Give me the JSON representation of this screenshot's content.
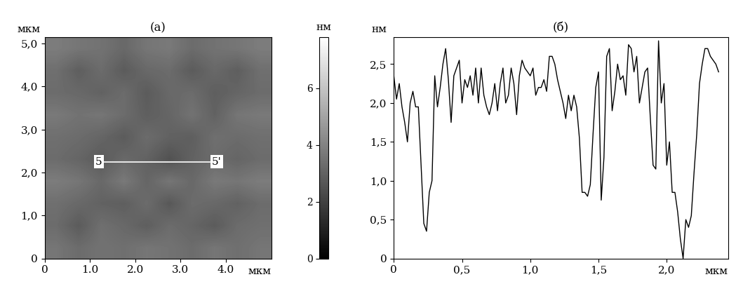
{
  "chart_data": [
    {
      "type": "heatmap",
      "title": "(а)",
      "x_label": "мкм",
      "y_label": "мкм",
      "xlim": [
        0,
        5.0
      ],
      "ylim": [
        0,
        5.15
      ],
      "xticks": [
        0,
        {
          "value": 1,
          "label": "1.0"
        },
        {
          "value": 2,
          "label": "2.0"
        },
        {
          "value": 3,
          "label": "3.0"
        },
        {
          "value": 4,
          "label": "4.0"
        }
      ],
      "yticks": [
        0,
        {
          "value": 1,
          "label": "1,0"
        },
        {
          "value": 2,
          "label": "2,0"
        },
        {
          "value": 3,
          "label": "3,0"
        },
        {
          "value": 4,
          "label": "4,0"
        },
        {
          "value": 5,
          "label": "5,0"
        }
      ],
      "cells": [
        [
          3.6,
          3.3,
          3.5,
          3.4,
          3.6,
          3.5,
          3.3,
          3.6,
          3.4,
          3.6
        ],
        [
          3.3,
          2.8,
          3.4,
          3.2,
          2.9,
          3.3,
          3.1,
          2.8,
          3.3,
          3.4
        ],
        [
          3.4,
          3.2,
          3.0,
          2.9,
          3.3,
          2.7,
          3.3,
          3.2,
          3.0,
          3.3
        ],
        [
          3.8,
          3.6,
          3.2,
          3.7,
          3.1,
          3.6,
          3.2,
          3.7,
          3.6,
          3.8
        ],
        [
          3.3,
          3.1,
          2.8,
          3.2,
          3.0,
          2.5,
          3.0,
          3.3,
          3.1,
          3.3
        ],
        [
          3.4,
          3.3,
          3.1,
          2.8,
          3.3,
          3.0,
          2.9,
          3.4,
          3.3,
          3.4
        ],
        [
          3.7,
          3.5,
          3.6,
          3.3,
          2.9,
          3.1,
          3.5,
          3.0,
          3.6,
          3.7
        ],
        [
          3.3,
          3.2,
          3.0,
          3.3,
          2.8,
          3.2,
          3.3,
          2.9,
          3.1,
          3.3
        ],
        [
          3.4,
          2.9,
          3.3,
          2.8,
          3.2,
          3.3,
          2.8,
          3.2,
          2.9,
          3.4
        ],
        [
          3.8,
          3.6,
          3.5,
          3.2,
          3.6,
          3.7,
          3.3,
          3.5,
          3.6,
          3.8
        ]
      ],
      "colorbar_label": "нм",
      "colorbar_range": [
        0,
        7.8
      ],
      "colorbar_ticks": [
        0,
        2,
        4,
        6
      ],
      "profile_line": {
        "x": [
          1.2,
          3.8
        ],
        "y": [
          2.25,
          2.25
        ],
        "labels": [
          "5",
          "5'"
        ]
      }
    },
    {
      "type": "line",
      "title": "(б)",
      "x_label": "мкм",
      "y_label": "нм",
      "xlim": [
        0,
        2.45
      ],
      "ylim": [
        0,
        2.85
      ],
      "xticks": [
        0,
        {
          "value": 0.5,
          "label": "0,5"
        },
        {
          "value": 1.0,
          "label": "1,0"
        },
        {
          "value": 1.5,
          "label": "1,5"
        },
        {
          "value": 2.0,
          "label": "2,0"
        }
      ],
      "yticks": [
        0,
        {
          "value": 0.5,
          "label": "0,5"
        },
        {
          "value": 1.0,
          "label": "1,0"
        },
        {
          "value": 1.5,
          "label": "1,5"
        },
        {
          "value": 2.0,
          "label": "2,0"
        },
        {
          "value": 2.5,
          "label": "2,5"
        }
      ],
      "color": "#000000",
      "x": [
        0.0,
        0.02,
        0.04,
        0.06,
        0.08,
        0.1,
        0.12,
        0.14,
        0.16,
        0.18,
        0.2,
        0.22,
        0.24,
        0.26,
        0.28,
        0.3,
        0.32,
        0.34,
        0.36,
        0.38,
        0.4,
        0.42,
        0.44,
        0.46,
        0.48,
        0.5,
        0.52,
        0.54,
        0.56,
        0.58,
        0.6,
        0.62,
        0.64,
        0.66,
        0.68,
        0.7,
        0.72,
        0.74,
        0.76,
        0.78,
        0.8,
        0.82,
        0.84,
        0.86,
        0.88,
        0.9,
        0.92,
        0.94,
        0.96,
        0.98,
        1.0,
        1.02,
        1.04,
        1.06,
        1.08,
        1.1,
        1.12,
        1.14,
        1.16,
        1.18,
        1.2,
        1.22,
        1.24,
        1.26,
        1.28,
        1.3,
        1.32,
        1.34,
        1.36,
        1.38,
        1.4,
        1.42,
        1.44,
        1.46,
        1.48,
        1.5,
        1.52,
        1.54,
        1.56,
        1.58,
        1.6,
        1.62,
        1.64,
        1.66,
        1.68,
        1.7,
        1.72,
        1.74,
        1.76,
        1.78,
        1.8,
        1.82,
        1.84,
        1.86,
        1.88,
        1.9,
        1.92,
        1.94,
        1.96,
        1.98,
        2.0,
        2.02,
        2.04,
        2.06,
        2.08,
        2.1,
        2.12,
        2.14,
        2.16,
        2.18,
        2.2,
        2.22,
        2.24,
        2.26,
        2.28,
        2.3,
        2.32,
        2.34,
        2.36,
        2.38
      ],
      "values": [
        2.35,
        2.05,
        2.25,
        1.95,
        1.75,
        1.5,
        2.0,
        2.15,
        1.95,
        1.95,
        1.2,
        0.45,
        0.35,
        0.85,
        1.0,
        2.35,
        1.95,
        2.2,
        2.5,
        2.7,
        2.3,
        1.75,
        2.35,
        2.45,
        2.55,
        2.0,
        2.3,
        2.2,
        2.35,
        2.1,
        2.45,
        2.0,
        2.45,
        2.1,
        1.95,
        1.85,
        2.0,
        2.25,
        1.9,
        2.25,
        2.45,
        2.0,
        2.1,
        2.45,
        2.25,
        1.85,
        2.35,
        2.55,
        2.45,
        2.4,
        2.35,
        2.45,
        2.1,
        2.2,
        2.2,
        2.3,
        2.15,
        2.6,
        2.6,
        2.5,
        2.3,
        2.15,
        2.0,
        1.8,
        2.1,
        1.9,
        2.1,
        1.95,
        1.55,
        0.85,
        0.85,
        0.8,
        0.95,
        1.6,
        2.2,
        2.4,
        0.75,
        1.3,
        2.6,
        2.7,
        1.9,
        2.15,
        2.5,
        2.3,
        2.35,
        2.1,
        2.75,
        2.7,
        2.4,
        2.6,
        2.0,
        2.2,
        2.4,
        2.45,
        1.8,
        1.2,
        1.15,
        2.8,
        2.0,
        2.25,
        1.2,
        1.5,
        0.85,
        0.85,
        0.6,
        0.25,
        0.0,
        0.5,
        0.4,
        0.55,
        1.1,
        1.6,
        2.25,
        2.5,
        2.7,
        2.7,
        2.6,
        2.55,
        2.5,
        2.4
      ]
    }
  ]
}
